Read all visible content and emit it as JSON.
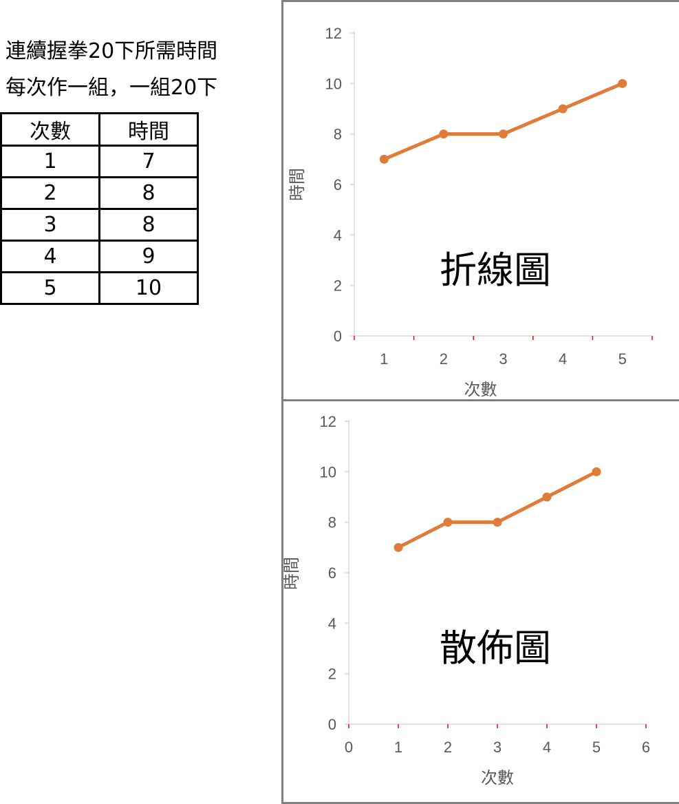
{
  "caption": {
    "line1": "連續握拳20下所需時間",
    "line2": "每次作一組，一組20下"
  },
  "table": {
    "headers": [
      "次數",
      "時間"
    ],
    "rows": [
      [
        "1",
        "7"
      ],
      [
        "2",
        "8"
      ],
      [
        "3",
        "8"
      ],
      [
        "4",
        "9"
      ],
      [
        "5",
        "10"
      ]
    ]
  },
  "chart_data": [
    {
      "type": "line",
      "overlay_label": "折線圖",
      "xlabel": "次數",
      "ylabel": "時間",
      "categories": [
        "1",
        "2",
        "3",
        "4",
        "5"
      ],
      "x_axis_kind": "category",
      "y_ticks": [
        0,
        2,
        4,
        6,
        8,
        10,
        12
      ],
      "ylim": [
        0,
        12
      ],
      "series": [
        {
          "values": [
            7,
            8,
            8,
            9,
            10
          ]
        }
      ],
      "color": "#E07B39",
      "grid": false
    },
    {
      "type": "scatter",
      "overlay_label": "散佈圖",
      "xlabel": "次數",
      "ylabel": "時間",
      "x_ticks": [
        0,
        1,
        2,
        3,
        4,
        5,
        6
      ],
      "xlim": [
        0,
        6
      ],
      "y_ticks": [
        0,
        2,
        4,
        6,
        8,
        10,
        12
      ],
      "ylim": [
        0,
        12
      ],
      "series": [
        {
          "x": [
            1,
            2,
            3,
            4,
            5
          ],
          "y": [
            7,
            8,
            8,
            9,
            10
          ]
        }
      ],
      "color": "#E07B39",
      "grid": false
    }
  ]
}
